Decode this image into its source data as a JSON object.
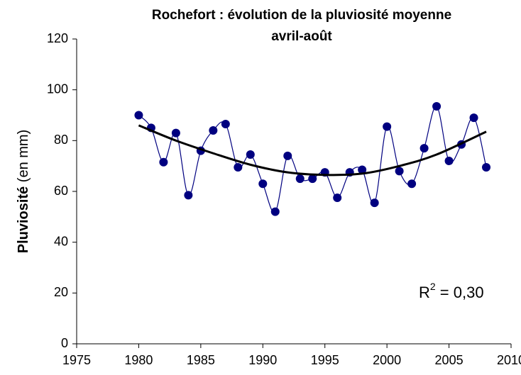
{
  "chart_data": {
    "type": "line",
    "title": [
      "Rochefort : évolution de la pluviosité moyenne",
      "avril-août"
    ],
    "y_label": {
      "bold": "Pluviosité",
      "normal": "(en mm)"
    },
    "annotation": {
      "text": "R",
      "sup": "2",
      "rest": " = 0,30"
    },
    "x": [
      1980,
      1981,
      1982,
      1983,
      1984,
      1985,
      1986,
      1987,
      1988,
      1989,
      1990,
      1991,
      1992,
      1993,
      1994,
      1995,
      1996,
      1997,
      1998,
      1999,
      2000,
      2001,
      2002,
      2003,
      2004,
      2005,
      2006,
      2007,
      2008
    ],
    "series": [
      {
        "color": "#000080",
        "values": [
          90,
          85,
          71.5,
          83,
          58.5,
          76,
          84,
          86.5,
          69.5,
          74.5,
          63,
          52,
          74,
          65,
          65,
          67.5,
          57.5,
          67.5,
          68.5,
          55.5,
          85.5,
          68,
          63,
          77,
          93.5,
          72,
          78.5,
          89,
          69.5
        ]
      }
    ],
    "trend": {
      "color": "#000000",
      "x": [
        1980,
        1983,
        1986,
        1989,
        1992,
        1995,
        1998,
        2001,
        2004,
        2008
      ],
      "values": [
        86,
        80,
        75,
        70.5,
        67.5,
        66.5,
        67,
        70,
        74.5,
        83.5
      ]
    },
    "xlim": [
      1975,
      2010
    ],
    "xticks": [
      1975,
      1980,
      1985,
      1990,
      1995,
      2000,
      2005,
      2010
    ],
    "ylim": [
      0,
      120
    ],
    "yticks": [
      0,
      20,
      40,
      60,
      80,
      100,
      120
    ]
  }
}
